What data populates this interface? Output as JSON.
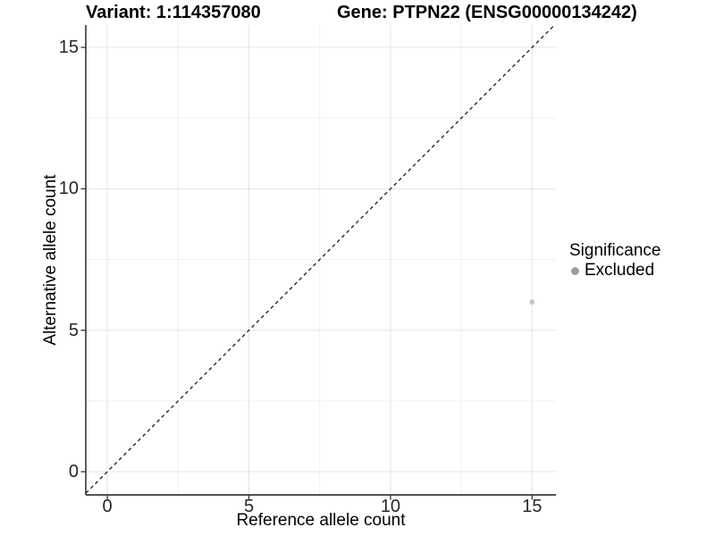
{
  "titles": {
    "variant": "Variant: 1:114357080",
    "gene": "Gene: PTPN22 (ENSG00000134242)"
  },
  "chart_data": {
    "type": "scatter",
    "title": "Variant: 1:114357080   Gene: PTPN22 (ENSG00000134242)",
    "xlabel": "Reference allele count",
    "ylabel": "Alternative allele count",
    "x_ticks": [
      0,
      5,
      10,
      15
    ],
    "y_ticks": [
      0,
      5,
      10,
      15
    ],
    "x_tick_labels": [
      "0",
      "5",
      "10",
      "15"
    ],
    "y_tick_labels": [
      "0",
      "5",
      "10",
      "15"
    ],
    "x_domain": [
      -0.76,
      15.84
    ],
    "y_domain": [
      -0.82,
      15.79
    ],
    "grid_minor_ticks": [
      2.5,
      7.5,
      12.5
    ],
    "grid": "major-and-minor",
    "legend_position": "right",
    "series": [
      {
        "name": "Excluded",
        "points": [
          {
            "x": 15,
            "y": 6
          }
        ]
      }
    ],
    "reference_line": {
      "type": "identity y=x",
      "style": "dashed",
      "color": "#1a1a1a"
    }
  },
  "legend": {
    "title": "Significance",
    "items": [
      {
        "label": "Excluded",
        "color": "#9e9e9e"
      }
    ]
  },
  "colors": {
    "background": "#ffffff",
    "grid_major": "#e4e4e4",
    "grid_minor": "#f1f1f1",
    "axis_line": "#1a1a1a",
    "tick_mark": "#333333",
    "tick_text": "#262626",
    "point": "#c7c7c7",
    "legend_point": "#9e9e9e",
    "title_text": "#000000"
  }
}
